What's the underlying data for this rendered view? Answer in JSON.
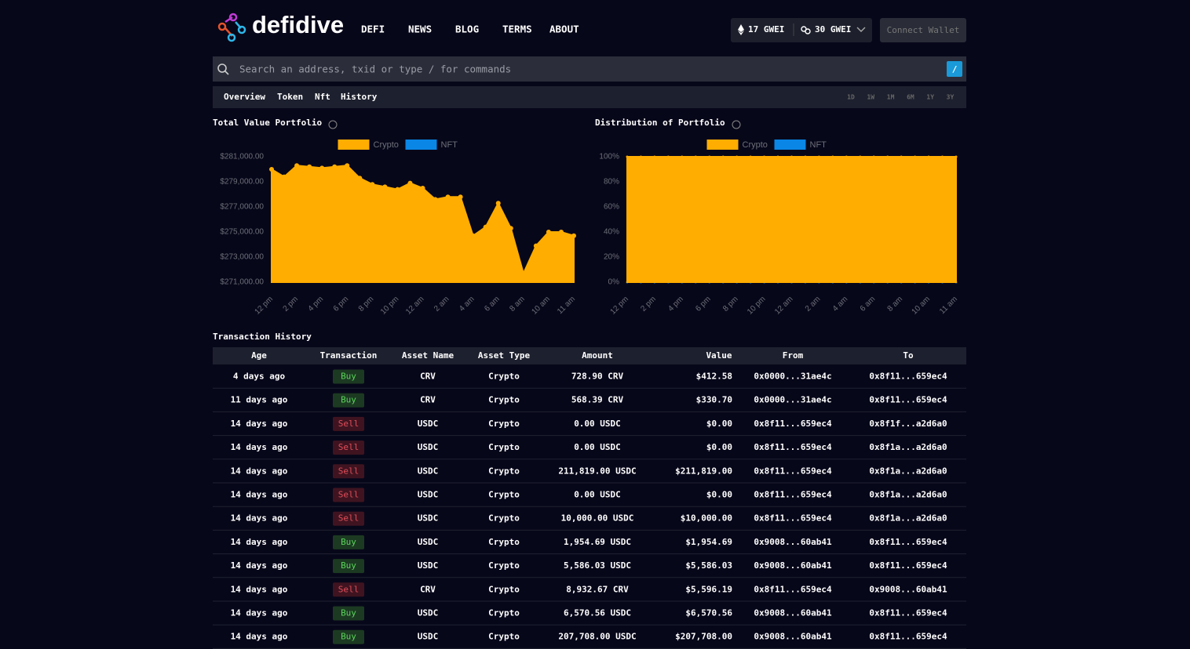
{
  "header": {
    "brand": "defidive",
    "nav": [
      "DEFI",
      "NEWS",
      "BLOG",
      "TERMS",
      "ABOUT"
    ],
    "gas": [
      "17 GWEI",
      "30 GWEI"
    ],
    "connect": "Connect Wallet"
  },
  "search": {
    "placeholder": "Search an address, txid or type / for commands",
    "shortcut": "/"
  },
  "tabs": {
    "items": [
      "Overview",
      "Token",
      "Nft",
      "History"
    ],
    "active": "History",
    "ranges": [
      "1D",
      "1W",
      "1M",
      "6M",
      "1Y",
      "3Y"
    ]
  },
  "chart_data": [
    {
      "type": "area",
      "title": "Total Value Portfolio",
      "categories": [
        "12 pm",
        null,
        "2 pm",
        null,
        "4 pm",
        null,
        "6 pm",
        null,
        "8 pm",
        null,
        "10 pm",
        null,
        "12 am",
        null,
        "2 am",
        null,
        "4 am",
        null,
        "6 am",
        null,
        "8 am",
        null,
        "10 am",
        null,
        "11 am"
      ],
      "series": [
        {
          "name": "Crypto",
          "color": "#ffad00",
          "values": [
            280000,
            279400,
            280300,
            280200,
            280100,
            280200,
            280300,
            279300,
            278800,
            278600,
            278400,
            278900,
            278500,
            277600,
            277800,
            277800,
            274700,
            275400,
            277300,
            275300,
            271700,
            273900,
            275000,
            275000,
            274700
          ]
        },
        {
          "name": "NFT",
          "color": "#0a86e6",
          "values": [
            null,
            null,
            null,
            null,
            null,
            null,
            null,
            null,
            null,
            null,
            null,
            null,
            null,
            null,
            null,
            null,
            null,
            null,
            null,
            null,
            null,
            null,
            null,
            null,
            null
          ]
        }
      ],
      "ylim": [
        271000,
        281000
      ],
      "yticks": [
        {
          "value": 271000,
          "label": "$271,000.00"
        },
        {
          "value": 273000,
          "label": "$273,000.00"
        },
        {
          "value": 275000,
          "label": "$275,000.00"
        },
        {
          "value": 277000,
          "label": "$277,000.00"
        },
        {
          "value": 279000,
          "label": "$279,000.00"
        },
        {
          "value": 281000,
          "label": "$281,000.00"
        }
      ]
    },
    {
      "type": "area",
      "title": "Distribution of Portfolio",
      "categories": [
        "12 pm",
        null,
        "2 pm",
        null,
        "4 pm",
        null,
        "6 pm",
        null,
        "8 pm",
        null,
        "10 pm",
        null,
        "12 am",
        null,
        "2 am",
        null,
        "4 am",
        null,
        "6 am",
        null,
        "8 am",
        null,
        "10 am",
        null,
        "11 am"
      ],
      "series": [
        {
          "name": "Crypto",
          "color": "#ffad00",
          "values": [
            100,
            100,
            100,
            100,
            100,
            100,
            100,
            100,
            100,
            100,
            100,
            100,
            100,
            100,
            100,
            100,
            100,
            100,
            100,
            100,
            100,
            100,
            100,
            100,
            100
          ]
        },
        {
          "name": "NFT",
          "color": "#0a86e6",
          "values": [
            0,
            0,
            0,
            0,
            0,
            0,
            0,
            0,
            0,
            0,
            0,
            0,
            0,
            0,
            0,
            0,
            0,
            0,
            0,
            0,
            0,
            0,
            0,
            0,
            0
          ]
        }
      ],
      "ylim": [
        0,
        100
      ],
      "yticks": [
        {
          "value": 0,
          "label": "0%"
        },
        {
          "value": 20,
          "label": "20%"
        },
        {
          "value": 40,
          "label": "40%"
        },
        {
          "value": 60,
          "label": "60%"
        },
        {
          "value": 80,
          "label": "80%"
        },
        {
          "value": 100,
          "label": "100%"
        }
      ]
    }
  ],
  "table": {
    "title": "Transaction History",
    "columns": [
      "Age",
      "Transaction",
      "Asset Name",
      "Asset Type",
      "Amount",
      "Value",
      "From",
      "To"
    ],
    "badge_colors": {
      "Buy": {
        "bg": "#1c3a22",
        "fg": "#5bd45b"
      },
      "Sell": {
        "bg": "#3f1420",
        "fg": "#e24d5a"
      }
    },
    "rows": [
      [
        "4 days ago",
        "Buy",
        "CRV",
        "Crypto",
        "728.90 CRV",
        "$412.58",
        "0x0000...31ae4c",
        "0x8f11...659ec4"
      ],
      [
        "11 days ago",
        "Buy",
        "CRV",
        "Crypto",
        "568.39 CRV",
        "$330.70",
        "0x0000...31ae4c",
        "0x8f11...659ec4"
      ],
      [
        "14 days ago",
        "Sell",
        "USDC",
        "Crypto",
        "0.00 USDC",
        "$0.00",
        "0x8f11...659ec4",
        "0x8f1f...a2d6a0"
      ],
      [
        "14 days ago",
        "Sell",
        "USDC",
        "Crypto",
        "0.00 USDC",
        "$0.00",
        "0x8f11...659ec4",
        "0x8f1a...a2d6a0"
      ],
      [
        "14 days ago",
        "Sell",
        "USDC",
        "Crypto",
        "211,819.00 USDC",
        "$211,819.00",
        "0x8f11...659ec4",
        "0x8f1a...a2d6a0"
      ],
      [
        "14 days ago",
        "Sell",
        "USDC",
        "Crypto",
        "0.00 USDC",
        "$0.00",
        "0x8f11...659ec4",
        "0x8f1a...a2d6a0"
      ],
      [
        "14 days ago",
        "Sell",
        "USDC",
        "Crypto",
        "10,000.00 USDC",
        "$10,000.00",
        "0x8f11...659ec4",
        "0x8f1a...a2d6a0"
      ],
      [
        "14 days ago",
        "Buy",
        "USDC",
        "Crypto",
        "1,954.69 USDC",
        "$1,954.69",
        "0x9008...60ab41",
        "0x8f11...659ec4"
      ],
      [
        "14 days ago",
        "Buy",
        "USDC",
        "Crypto",
        "5,586.03 USDC",
        "$5,586.03",
        "0x9008...60ab41",
        "0x8f11...659ec4"
      ],
      [
        "14 days ago",
        "Sell",
        "CRV",
        "Crypto",
        "8,932.67 CRV",
        "$5,596.19",
        "0x8f11...659ec4",
        "0x9008...60ab41"
      ],
      [
        "14 days ago",
        "Buy",
        "USDC",
        "Crypto",
        "6,570.56 USDC",
        "$6,570.56",
        "0x9008...60ab41",
        "0x8f11...659ec4"
      ],
      [
        "14 days ago",
        "Buy",
        "USDC",
        "Crypto",
        "207,708.00 USDC",
        "$207,708.00",
        "0x9008...60ab41",
        "0x8f11...659ec4"
      ]
    ]
  }
}
